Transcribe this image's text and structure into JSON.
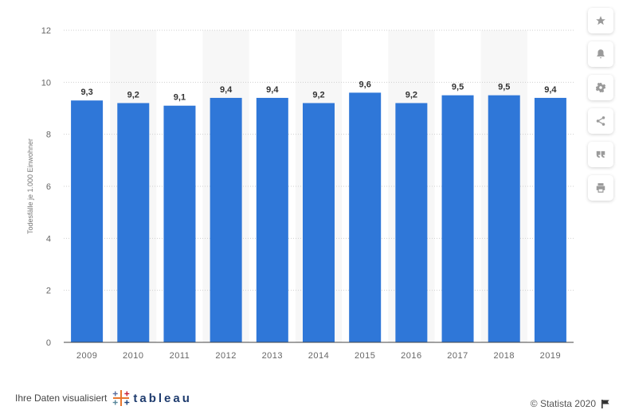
{
  "chart_data": {
    "type": "bar",
    "categories": [
      "2009",
      "2010",
      "2011",
      "2012",
      "2013",
      "2014",
      "2015",
      "2016",
      "2017",
      "2018",
      "2019"
    ],
    "values": [
      9.3,
      9.2,
      9.1,
      9.4,
      9.4,
      9.2,
      9.6,
      9.2,
      9.5,
      9.5,
      9.4
    ],
    "value_labels": [
      "9,3",
      "9,2",
      "9,1",
      "9,4",
      "9,4",
      "9,2",
      "9,6",
      "9,2",
      "9,5",
      "9,5",
      "9,4"
    ],
    "ylabel": "Todesfälle je 1.000 Einwohner",
    "xlabel": "",
    "ylim": [
      0,
      12
    ],
    "yticks": [
      0,
      2,
      4,
      6,
      8,
      10,
      12
    ],
    "grid": true,
    "bar_color": "#2f77d8"
  },
  "toolbar": {
    "items": [
      {
        "icon": "star-icon"
      },
      {
        "icon": "bell-icon"
      },
      {
        "icon": "gear-icon"
      },
      {
        "icon": "share-icon"
      },
      {
        "icon": "quote-icon"
      },
      {
        "icon": "print-icon"
      }
    ]
  },
  "footer": {
    "visualized_text": "Ihre Daten visualisiert",
    "tableau_word": "tableau",
    "copyright": "© Statista 2020"
  }
}
